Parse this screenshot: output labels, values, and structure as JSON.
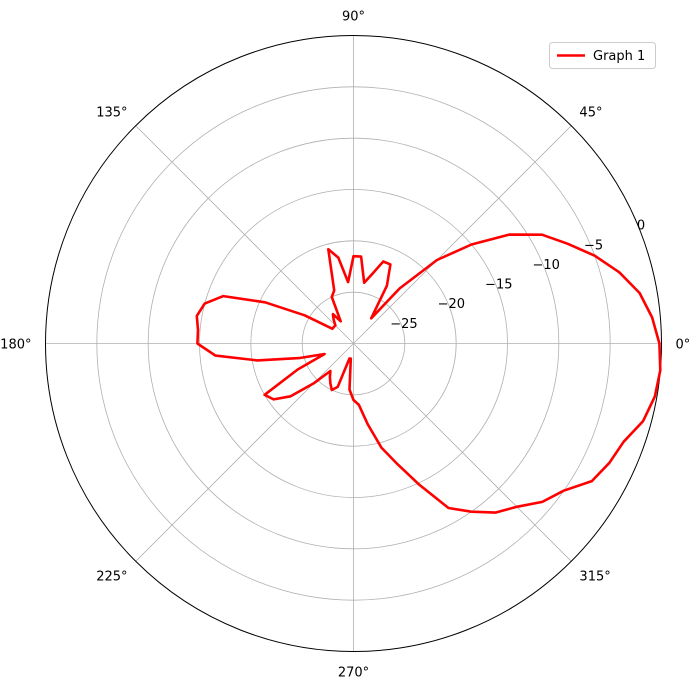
{
  "chart_data": {
    "type": "line",
    "projection": "polar",
    "title": "",
    "xlabel": "",
    "ylabel": "",
    "theta_unit": "degrees",
    "r_unit": "dB",
    "rlim": [
      -30,
      0
    ],
    "r_ticks": [
      -25,
      -20,
      -15,
      -10,
      -5,
      0
    ],
    "r_tick_labels": [
      "−25",
      "−20",
      "−15",
      "−10",
      "−5",
      "0"
    ],
    "theta_ticks": [
      0,
      45,
      90,
      135,
      180,
      225,
      270,
      315
    ],
    "theta_tick_labels": [
      "0°",
      "45°",
      "90°",
      "135°",
      "180°",
      "225°",
      "270°",
      "315°"
    ],
    "grid": true,
    "legend": {
      "position": "top-right"
    },
    "series": [
      {
        "name": "Graph 1",
        "color": "#ff0000",
        "theta": [
          0,
          5,
          10,
          15,
          20,
          25,
          30,
          35,
          40,
          45,
          50,
          55,
          60,
          65,
          70,
          75,
          80,
          85,
          90,
          95,
          100,
          105,
          110,
          115,
          120,
          125,
          130,
          135,
          140,
          145,
          150,
          155,
          160,
          165,
          170,
          175,
          180,
          185,
          190,
          195,
          200,
          205,
          210,
          215,
          220,
          225,
          230,
          235,
          240,
          245,
          250,
          255,
          260,
          265,
          270,
          275,
          280,
          285,
          290,
          295,
          300,
          305,
          310,
          315,
          320,
          325,
          330,
          335,
          340,
          345,
          350,
          355,
          360
        ],
        "r": [
          -0.2,
          -0.8,
          -1.7,
          -3.2,
          -5.0,
          -7.0,
          -8.8,
          -11.5,
          -15.0,
          -18.5,
          -23.0,
          -27.0,
          -23.5,
          -21.5,
          -21.5,
          -23.0,
          -24.0,
          -21.5,
          -21.5,
          -24.0,
          -21.5,
          -20.5,
          -24.5,
          -25.0,
          -27.5,
          -26.5,
          -27.0,
          -27.5,
          -27.5,
          -27.5,
          -24.5,
          -20.5,
          -16.5,
          -15.0,
          -14.5,
          -14.8,
          -14.8,
          -16.5,
          -20.5,
          -24.5,
          -27.0,
          -24.0,
          -20.0,
          -20.5,
          -22.0,
          -24.5,
          -26.5,
          -26.0,
          -25.5,
          -25.0,
          -25.5,
          -28.5,
          -28.5,
          -25.5,
          -24.5,
          -24.0,
          -22.0,
          -19.5,
          -17.5,
          -14.8,
          -11.5,
          -10.0,
          -8.5,
          -7.5,
          -6.0,
          -5.0,
          -3.2,
          -2.5,
          -2.0,
          -0.8,
          -0.2,
          0.0,
          -0.2
        ]
      }
    ]
  }
}
